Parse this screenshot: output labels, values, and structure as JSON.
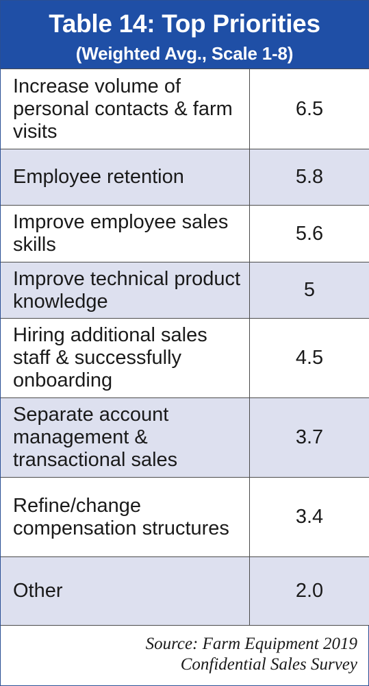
{
  "header": {
    "title": "Table 14: Top Priorities",
    "subtitle": "(Weighted Avg., Scale 1-8)"
  },
  "rows": [
    {
      "label": "Increase volume of personal contacts & farm visits",
      "value": "6.5"
    },
    {
      "label": "Employee retention",
      "value": "5.8"
    },
    {
      "label": "Improve employee sales skills",
      "value": "5.6"
    },
    {
      "label": "Improve technical product knowledge",
      "value": "5"
    },
    {
      "label": "Hiring additional sales staff & successfully onboarding",
      "value": "4.5"
    },
    {
      "label": "Separate account management & transactional sales",
      "value": "3.7"
    },
    {
      "label": "Refine/change compensation structures",
      "value": "3.4"
    },
    {
      "label": "Other",
      "value": "2.0"
    }
  ],
  "source": {
    "line1": "Source: Farm Equipment 2019",
    "line2": "Confidential Sales Survey"
  },
  "colors": {
    "header_bg": "#1f4fa6",
    "row_shade": "#dde0ef",
    "border": "#4a4a4a"
  }
}
